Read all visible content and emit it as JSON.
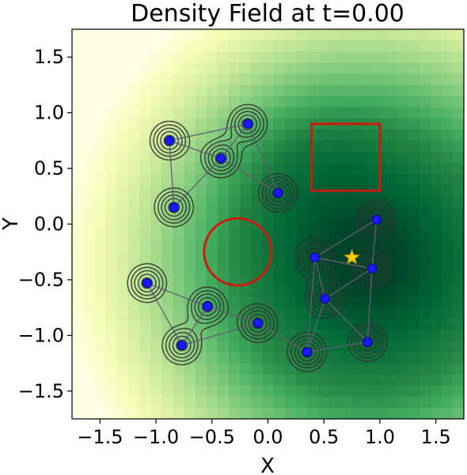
{
  "chart_data": {
    "type": "scatter",
    "title": "Density Field at t=0.00",
    "xlabel": "X",
    "ylabel": "Y",
    "xlim": [
      -1.75,
      1.75
    ],
    "ylim": [
      -1.75,
      1.75
    ],
    "xticks": [
      -1.5,
      -1.0,
      -0.5,
      0.0,
      0.5,
      1.0,
      1.5
    ],
    "yticks": [
      -1.5,
      -1.0,
      -0.5,
      0.0,
      0.5,
      1.0,
      1.5
    ],
    "xtick_labels": [
      "−1.5",
      "−1.0",
      "−0.5",
      "0.0",
      "0.5",
      "1.0",
      "1.5"
    ],
    "ytick_labels": [
      "−1.5",
      "−1.0",
      "−0.5",
      "0.0",
      "0.5",
      "1.0",
      "1.5"
    ],
    "grid": false,
    "colormap": "YlGn",
    "density_grid_resolution": 35,
    "colors": {
      "agent": "#1a1aff",
      "agent_edge": "#0000aa",
      "link": "#606070",
      "contour": "#333333",
      "obstacle": "#cc1a10",
      "goal": "#ffcc00"
    },
    "agents": [
      {
        "x": -0.88,
        "y": 0.75
      },
      {
        "x": -0.18,
        "y": 0.9
      },
      {
        "x": -0.42,
        "y": 0.59
      },
      {
        "x": 0.09,
        "y": 0.28
      },
      {
        "x": -0.84,
        "y": 0.15
      },
      {
        "x": -1.08,
        "y": -0.53
      },
      {
        "x": -0.54,
        "y": -0.74
      },
      {
        "x": -0.77,
        "y": -1.09
      },
      {
        "x": -0.09,
        "y": -0.89
      },
      {
        "x": 0.35,
        "y": -1.15
      },
      {
        "x": 0.89,
        "y": -1.06
      },
      {
        "x": 0.51,
        "y": -0.67
      },
      {
        "x": 0.42,
        "y": -0.3
      },
      {
        "x": 0.93,
        "y": -0.4
      },
      {
        "x": 0.97,
        "y": 0.04
      }
    ],
    "links": [
      [
        0,
        1
      ],
      [
        1,
        2
      ],
      [
        0,
        2
      ],
      [
        0,
        4
      ],
      [
        2,
        4
      ],
      [
        1,
        3
      ],
      [
        2,
        3
      ],
      [
        5,
        6
      ],
      [
        6,
        7
      ],
      [
        5,
        7
      ],
      [
        6,
        8
      ],
      [
        7,
        8
      ],
      [
        8,
        9
      ],
      [
        9,
        10
      ],
      [
        9,
        11
      ],
      [
        11,
        12
      ],
      [
        11,
        13
      ],
      [
        12,
        13
      ],
      [
        10,
        13
      ],
      [
        13,
        14
      ],
      [
        12,
        14
      ],
      [
        10,
        11
      ],
      [
        9,
        12
      ]
    ],
    "obstacles": [
      {
        "shape": "circle",
        "cx": -0.27,
        "cy": -0.25,
        "r": 0.3
      },
      {
        "shape": "rectangle",
        "x0": 0.39,
        "y0": 0.3,
        "x1": 1.0,
        "y1": 0.9
      }
    ],
    "goal": {
      "x": 0.75,
      "y": -0.3,
      "marker": "star"
    },
    "contour_levels": [
      0.35,
      0.5,
      0.65,
      0.8,
      0.92
    ]
  }
}
